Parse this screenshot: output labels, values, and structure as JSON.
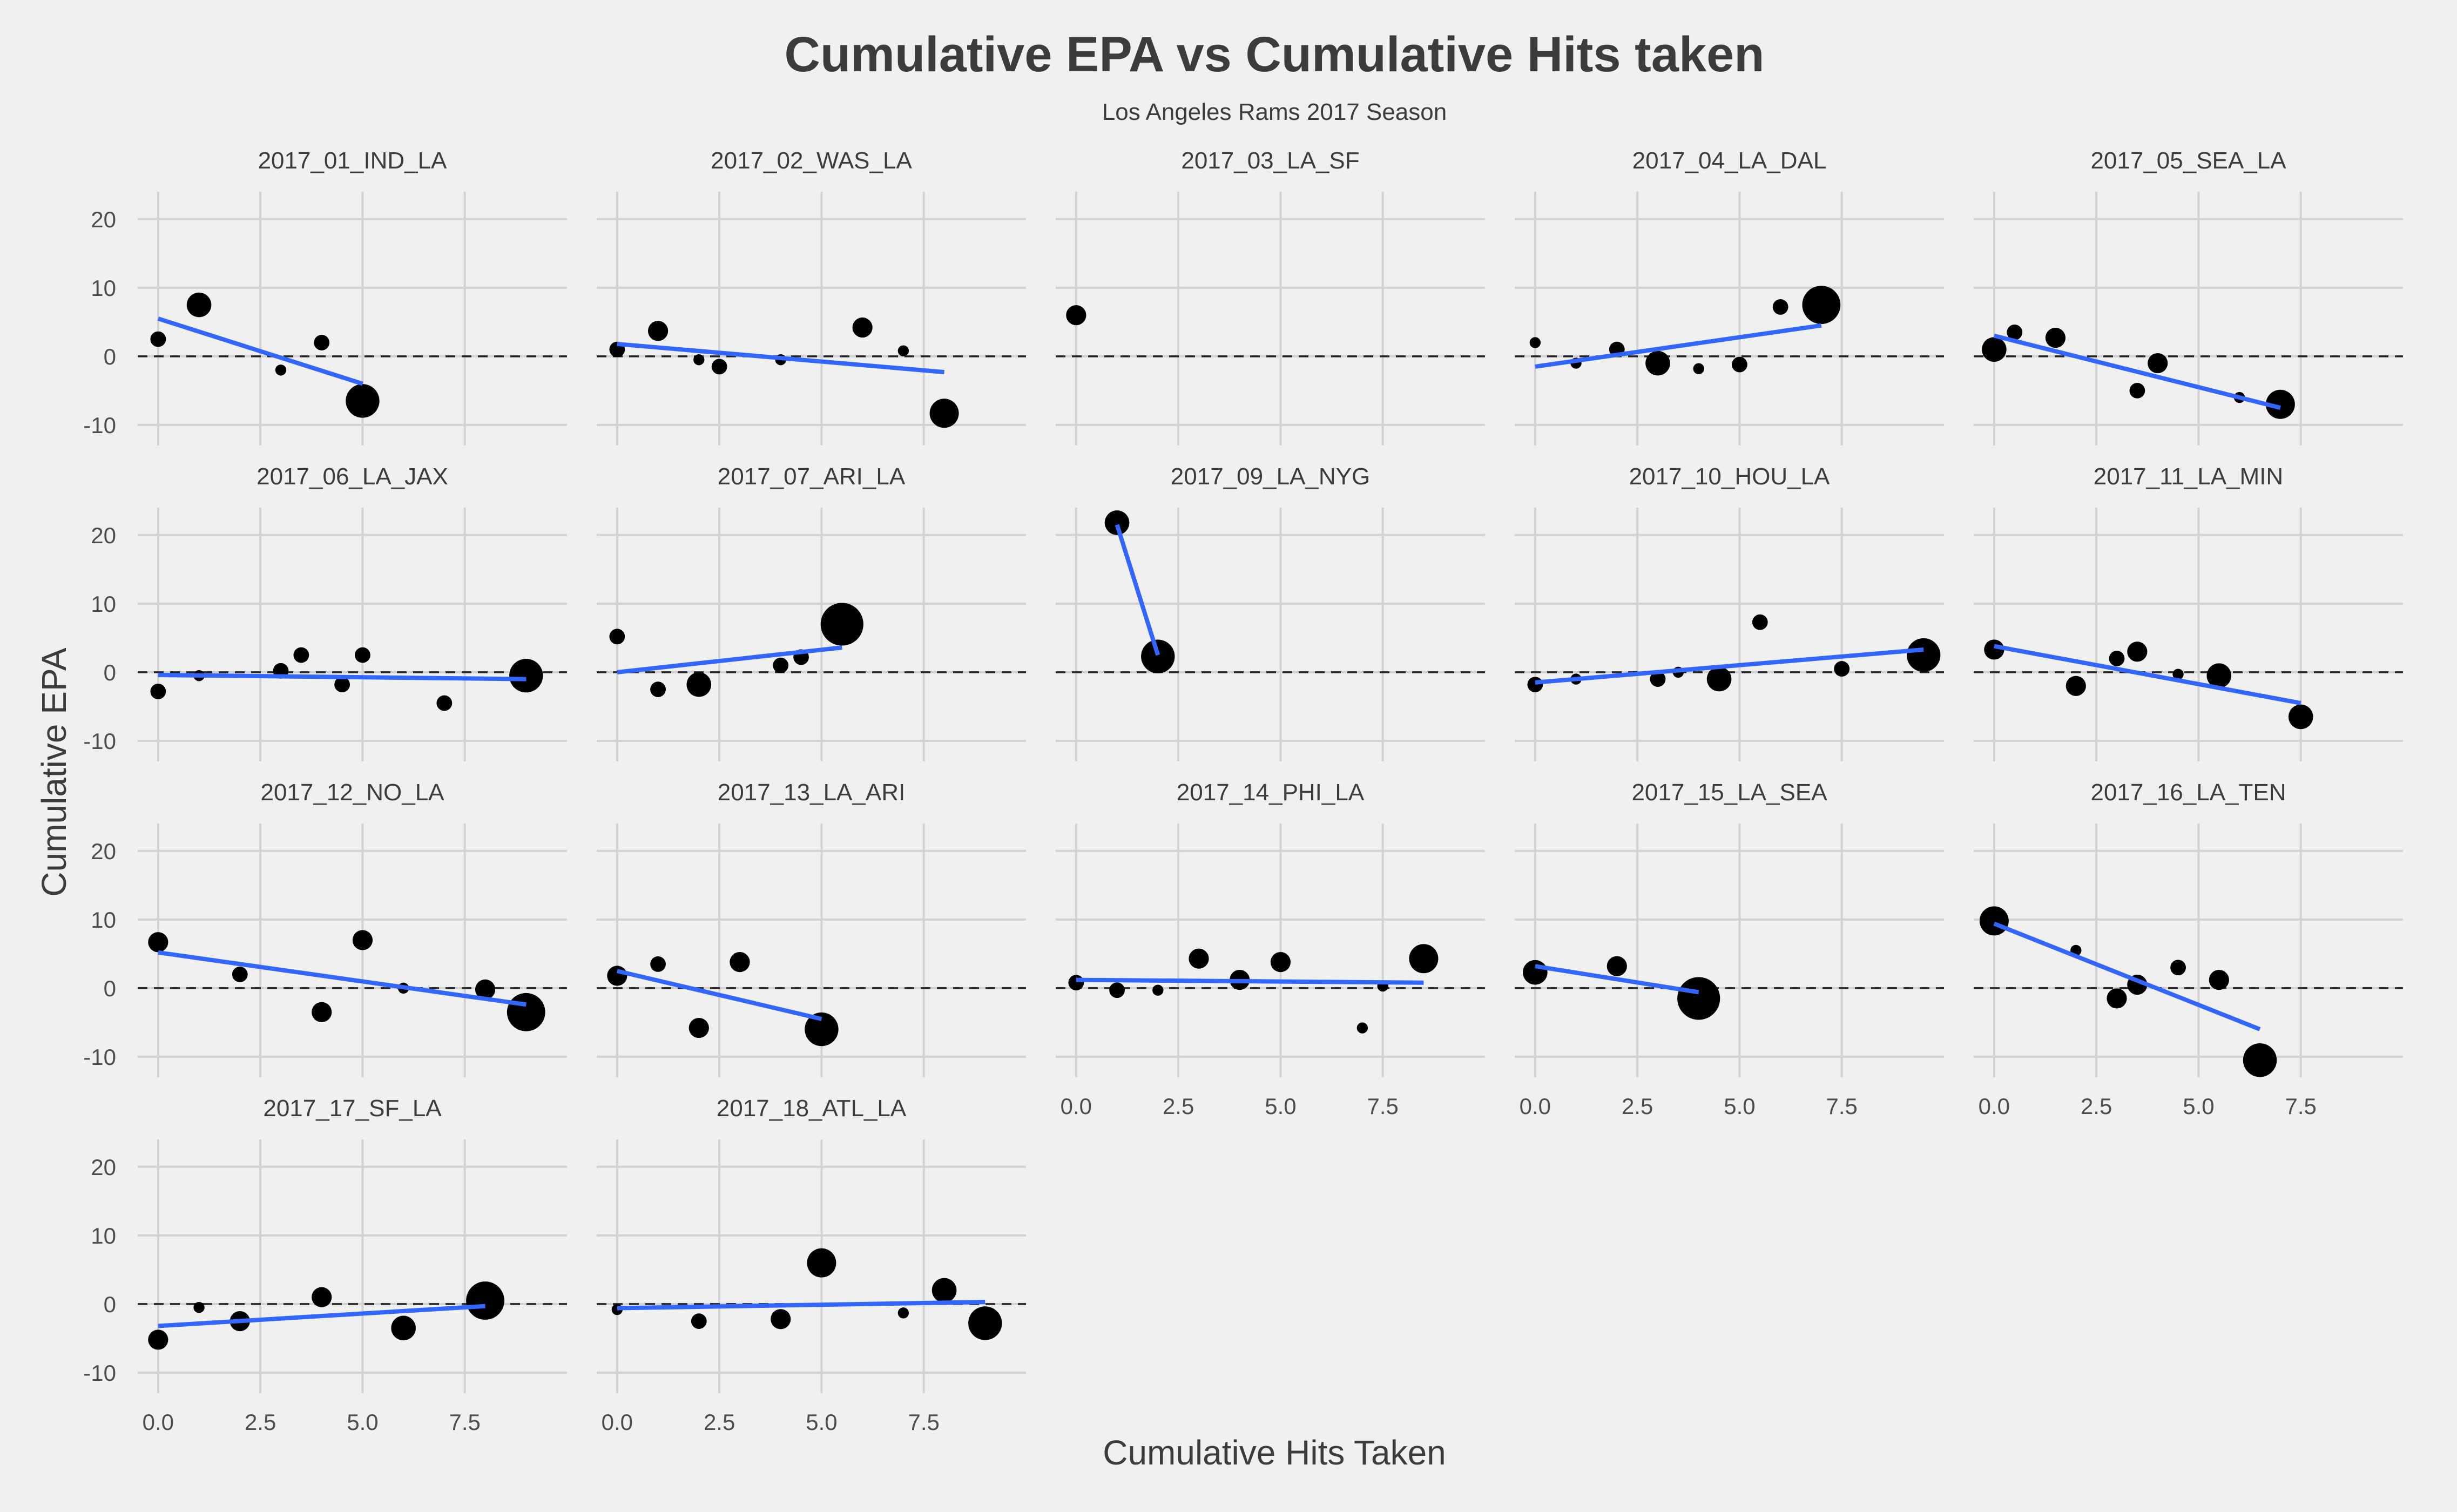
{
  "chart_data": {
    "type": "scatter",
    "title": "Cumulative EPA vs Cumulative Hits taken",
    "subtitle": "Los Angeles Rams 2017 Season",
    "xlabel": "Cumulative Hits Taken",
    "ylabel": "Cumulative EPA",
    "xlim": [
      -0.5,
      10
    ],
    "ylim": [
      -13,
      24
    ],
    "x_ticks": [
      "0.0",
      "2.5",
      "5.0",
      "7.5"
    ],
    "x_tick_values": [
      0,
      2.5,
      5,
      7.5
    ],
    "y_ticks": [
      "20",
      "10",
      "0",
      "-10"
    ],
    "y_tick_values": [
      20,
      10,
      0,
      -10
    ],
    "grid": true,
    "reference_line": 0,
    "colors": {
      "background": "#f0f0f0",
      "grid": "#d2d2d2",
      "points": "#000000",
      "trend": "#3366ff",
      "text": "#3c3c3c"
    },
    "facets": [
      {
        "label": "2017_01_IND_LA",
        "points": [
          [
            0,
            2.5,
            2
          ],
          [
            1,
            7.5,
            4
          ],
          [
            3,
            -2,
            1
          ],
          [
            4,
            2,
            2
          ],
          [
            5,
            -6.5,
            6
          ]
        ],
        "trend": [
          [
            0,
            5.5
          ],
          [
            5,
            -4
          ]
        ]
      },
      {
        "label": "2017_02_WAS_LA",
        "points": [
          [
            0,
            1,
            2
          ],
          [
            1,
            3.7,
            3
          ],
          [
            2,
            -0.5,
            1
          ],
          [
            2.5,
            -1.5,
            2
          ],
          [
            4,
            -0.5,
            1
          ],
          [
            6,
            4.2,
            3
          ],
          [
            7,
            0.8,
            1
          ],
          [
            8,
            -8.3,
            5
          ]
        ],
        "trend": [
          [
            0,
            1.8
          ],
          [
            8,
            -2.3
          ]
        ]
      },
      {
        "label": "2017_03_LA_SF",
        "points": [
          [
            0,
            6,
            3
          ]
        ],
        "trend": []
      },
      {
        "label": "2017_04_LA_DAL",
        "points": [
          [
            0,
            2,
            1
          ],
          [
            1,
            -1,
            1
          ],
          [
            2,
            1,
            2
          ],
          [
            3,
            -1,
            4
          ],
          [
            4,
            -1.8,
            1
          ],
          [
            5,
            -1.2,
            2
          ],
          [
            6,
            7.2,
            2
          ],
          [
            7,
            7.5,
            7
          ]
        ],
        "trend": [
          [
            0,
            -1.5
          ],
          [
            7,
            4.5
          ]
        ]
      },
      {
        "label": "2017_05_SEA_LA",
        "points": [
          [
            0,
            1,
            4
          ],
          [
            0.5,
            3.5,
            2
          ],
          [
            1.5,
            2.7,
            3
          ],
          [
            3.5,
            -5,
            2
          ],
          [
            4,
            -1,
            3
          ],
          [
            6,
            -6,
            1
          ],
          [
            7,
            -7,
            5
          ]
        ],
        "trend": [
          [
            0,
            3
          ],
          [
            7,
            -7.5
          ]
        ]
      },
      {
        "label": "2017_06_LA_JAX",
        "points": [
          [
            0,
            -2.8,
            2
          ],
          [
            1,
            -0.5,
            1
          ],
          [
            3,
            0.2,
            2
          ],
          [
            3.5,
            2.5,
            2
          ],
          [
            4.5,
            -1.8,
            2
          ],
          [
            5,
            2.5,
            2
          ],
          [
            7,
            -4.5,
            2
          ],
          [
            9,
            -0.5,
            6
          ]
        ],
        "trend": [
          [
            0,
            -0.4
          ],
          [
            9,
            -1
          ]
        ]
      },
      {
        "label": "2017_07_ARI_LA",
        "points": [
          [
            0,
            5.2,
            2
          ],
          [
            1,
            -2.5,
            2
          ],
          [
            2,
            -1.8,
            4
          ],
          [
            4,
            1,
            2
          ],
          [
            4.5,
            2.2,
            2
          ],
          [
            5.5,
            7,
            8
          ]
        ],
        "trend": [
          [
            0,
            0
          ],
          [
            5.5,
            3.6
          ]
        ]
      },
      {
        "label": "2017_09_LA_NYG",
        "points": [
          [
            1,
            21.8,
            4
          ],
          [
            2,
            2.3,
            6
          ]
        ],
        "trend": [
          [
            1,
            21.5
          ],
          [
            2,
            2.5
          ]
        ]
      },
      {
        "label": "2017_10_HOU_LA",
        "points": [
          [
            0,
            -1.8,
            2
          ],
          [
            1,
            -1,
            1
          ],
          [
            3,
            -1,
            2
          ],
          [
            3.5,
            0,
            1
          ],
          [
            4.5,
            -1,
            4
          ],
          [
            5.5,
            7.3,
            2
          ],
          [
            7.5,
            0.5,
            2
          ],
          [
            9.5,
            2.5,
            6
          ]
        ],
        "trend": [
          [
            0,
            -1.5
          ],
          [
            9.5,
            3.3
          ]
        ]
      },
      {
        "label": "2017_11_LA_MIN",
        "points": [
          [
            0,
            3.3,
            3
          ],
          [
            2,
            -2,
            3
          ],
          [
            3,
            2,
            2
          ],
          [
            3.5,
            3,
            3
          ],
          [
            4.5,
            -0.3,
            1
          ],
          [
            5.5,
            -0.5,
            4
          ],
          [
            7.5,
            -6.5,
            4
          ]
        ],
        "trend": [
          [
            0,
            3.8
          ],
          [
            7.5,
            -4.5
          ]
        ]
      },
      {
        "label": "2017_12_NO_LA",
        "points": [
          [
            0,
            6.7,
            3
          ],
          [
            2,
            2,
            2
          ],
          [
            4,
            -3.5,
            3
          ],
          [
            5,
            7,
            3
          ],
          [
            6,
            0,
            1
          ],
          [
            8,
            -0.2,
            3
          ],
          [
            9,
            -3.5,
            7
          ]
        ],
        "trend": [
          [
            0,
            5.2
          ],
          [
            9,
            -2.4
          ]
        ]
      },
      {
        "label": "2017_13_LA_ARI",
        "points": [
          [
            0,
            1.8,
            3
          ],
          [
            1,
            3.5,
            2
          ],
          [
            2,
            -5.8,
            3
          ],
          [
            3,
            3.8,
            3
          ],
          [
            5,
            -6,
            6
          ]
        ],
        "trend": [
          [
            0,
            2.5
          ],
          [
            5,
            -4.5
          ]
        ]
      },
      {
        "label": "2017_14_PHI_LA",
        "points": [
          [
            0,
            0.8,
            2
          ],
          [
            1,
            -0.3,
            2
          ],
          [
            2,
            -0.3,
            1
          ],
          [
            3,
            4.3,
            3
          ],
          [
            4,
            1.2,
            3
          ],
          [
            5,
            3.8,
            3
          ],
          [
            7,
            -5.8,
            1
          ],
          [
            7.5,
            0.3,
            1
          ],
          [
            8.5,
            4.3,
            5
          ]
        ],
        "trend": [
          [
            0,
            1.2
          ],
          [
            8.5,
            0.8
          ]
        ]
      },
      {
        "label": "2017_15_LA_SEA",
        "points": [
          [
            0,
            2.3,
            4
          ],
          [
            2,
            3.2,
            3
          ],
          [
            4,
            -1.5,
            8
          ]
        ],
        "trend": [
          [
            0,
            3.2
          ],
          [
            4,
            -0.6
          ]
        ]
      },
      {
        "label": "2017_16_LA_TEN",
        "points": [
          [
            0,
            9.8,
            5
          ],
          [
            2,
            5.5,
            1
          ],
          [
            3,
            -1.5,
            3
          ],
          [
            3.5,
            0.5,
            3
          ],
          [
            4.5,
            3,
            2
          ],
          [
            5.5,
            1.2,
            3
          ],
          [
            6.5,
            -10.5,
            6
          ]
        ],
        "trend": [
          [
            0,
            9.4
          ],
          [
            6.5,
            -6
          ]
        ]
      },
      {
        "label": "2017_17_SF_LA",
        "points": [
          [
            0,
            -5.2,
            3
          ],
          [
            1,
            -0.5,
            1
          ],
          [
            2,
            -2.5,
            3
          ],
          [
            4,
            1,
            3
          ],
          [
            6,
            -3.5,
            4
          ],
          [
            8,
            0.5,
            7
          ]
        ],
        "trend": [
          [
            0,
            -3.2
          ],
          [
            8,
            -0.3
          ]
        ]
      },
      {
        "label": "2017_18_ATL_LA",
        "points": [
          [
            0,
            -0.8,
            1
          ],
          [
            2,
            -2.5,
            2
          ],
          [
            4,
            -2.2,
            3
          ],
          [
            5,
            6,
            5
          ],
          [
            7,
            -1.3,
            1
          ],
          [
            8,
            2,
            4
          ],
          [
            9,
            -2.8,
            6
          ]
        ],
        "trend": [
          [
            0,
            -0.6
          ],
          [
            9,
            0.3
          ]
        ]
      }
    ]
  }
}
